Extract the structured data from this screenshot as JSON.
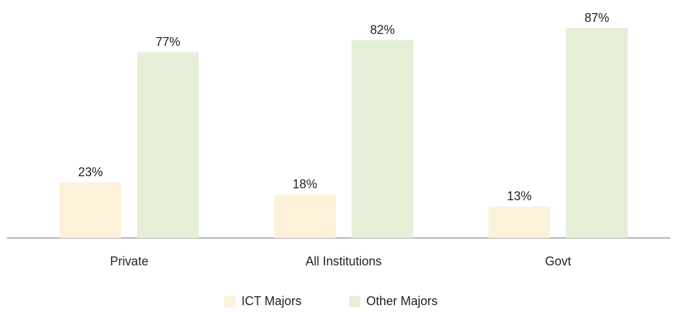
{
  "chart_data": {
    "type": "bar",
    "categories": [
      "Private",
      "All Institutions",
      "Govt"
    ],
    "series": [
      {
        "name": "ICT Majors",
        "color": "#fef1d9",
        "values": [
          23,
          18,
          13
        ],
        "value_labels": [
          "23%",
          "18%",
          "13%"
        ]
      },
      {
        "name": "Other Majors",
        "color": "#e5efd7",
        "values": [
          77,
          82,
          87
        ],
        "value_labels": [
          "77%",
          "82%",
          "87%"
        ]
      }
    ],
    "legend": "bottom"
  }
}
